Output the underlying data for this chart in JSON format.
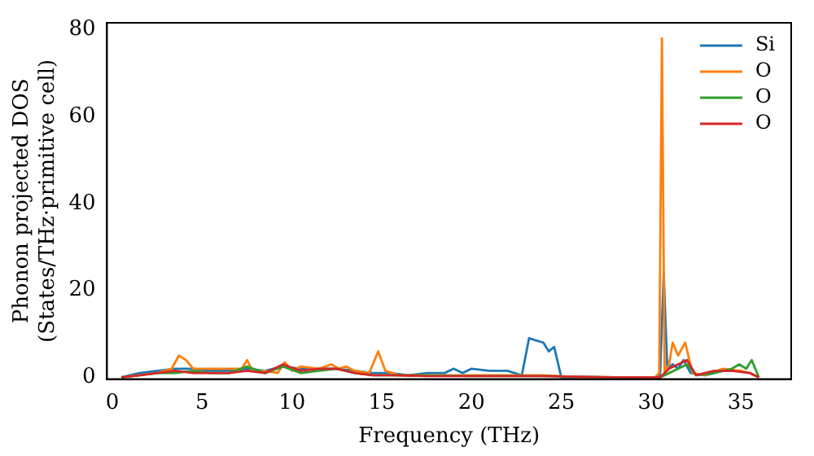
{
  "chart_data": {
    "type": "line",
    "xlabel": "Frequency (THz)",
    "ylabel": "Phonon projected DOS\n(States/THz·primitive cell)",
    "xlim": [
      -0.3,
      37.8
    ],
    "ylim": [
      -0.4,
      81.6
    ],
    "xticks": [
      0,
      5,
      10,
      15,
      20,
      25,
      30,
      35
    ],
    "yticks": [
      0,
      20,
      40,
      60,
      80
    ],
    "legend": "top right",
    "grid": false,
    "marker": "none",
    "line_style": "solid",
    "series": [
      {
        "name": "Si",
        "color": "#1f77b4",
        "x": [
          0.5,
          1.5,
          2.5,
          3.5,
          4.5,
          5.5,
          6.5,
          7.5,
          8.5,
          9.5,
          10.5,
          11.5,
          12.5,
          13.5,
          14.5,
          15.5,
          16.5,
          17.5,
          18.5,
          19,
          19.5,
          20,
          21,
          22,
          22.8,
          23.2,
          23.6,
          24,
          24.3,
          24.6,
          25,
          26,
          28,
          30.2,
          30.5,
          30.7,
          30.9,
          31.2,
          31.5,
          31.8,
          32.2,
          33,
          34,
          35
        ],
        "values": [
          0,
          1,
          1.5,
          2,
          2,
          1.5,
          1.5,
          2,
          1.5,
          2.5,
          2,
          2,
          2,
          1.5,
          1,
          1,
          0.5,
          1,
          1,
          2,
          1,
          2,
          1.5,
          1.5,
          0.5,
          9,
          8.5,
          8,
          6,
          7,
          0,
          0,
          0,
          0,
          0.5,
          24,
          2,
          3,
          2,
          4,
          1,
          0.5,
          1.5,
          1.5
        ]
      },
      {
        "name": "O",
        "color": "#ff7f0e",
        "x": [
          0.5,
          1.5,
          2.5,
          3.3,
          3.7,
          4.1,
          4.5,
          5.5,
          6.5,
          7.2,
          7.5,
          7.8,
          8.5,
          9.2,
          9.6,
          10,
          10.5,
          11.5,
          12.2,
          12.6,
          13,
          13.5,
          14.3,
          14.8,
          15.2,
          16,
          17.5,
          19,
          20.5,
          22,
          24,
          26,
          28,
          30.2,
          30.45,
          30.6,
          30.75,
          31,
          31.2,
          31.5,
          31.9,
          32.3,
          33,
          34,
          35,
          35.5,
          36
        ],
        "values": [
          0,
          0.5,
          1,
          2,
          5,
          4,
          2,
          2,
          2,
          2,
          4,
          1.5,
          1.5,
          1,
          3.5,
          1.5,
          2.5,
          2,
          3,
          2,
          2.5,
          1.5,
          1,
          6,
          1.5,
          0.5,
          0.5,
          0.5,
          0.5,
          0.5,
          0.5,
          0,
          0,
          0,
          1,
          78,
          1,
          3,
          8,
          5,
          8,
          1,
          0.5,
          2,
          1.5,
          1,
          0
        ]
      },
      {
        "name": "O",
        "color": "#2ca02c",
        "x": [
          0.5,
          1.5,
          2.5,
          3.5,
          4.5,
          5.5,
          6.5,
          7.5,
          8.5,
          9.5,
          10.5,
          11.5,
          12.5,
          13.5,
          14.5,
          15.5,
          17.5,
          20,
          24,
          28,
          30.5,
          31,
          31.5,
          32,
          32.5,
          33.5,
          34.5,
          34.9,
          35.3,
          35.6,
          36
        ],
        "values": [
          0,
          0.5,
          1,
          1,
          1.5,
          1,
          1,
          2.5,
          1,
          2.5,
          1,
          1.5,
          2,
          1,
          0.5,
          0.5,
          0.5,
          0.3,
          0.3,
          0,
          0,
          1,
          2,
          3,
          0.5,
          1,
          2,
          3,
          2,
          4,
          0
        ]
      },
      {
        "name": "O",
        "color": "#d62728",
        "x": [
          0.5,
          1.5,
          2.5,
          3.5,
          4.5,
          5.5,
          6.5,
          7.5,
          8.5,
          9.5,
          10.5,
          11.5,
          12.5,
          13.5,
          14.5,
          15.5,
          17.5,
          20,
          24,
          28,
          30.5,
          31,
          31.5,
          32,
          32.5,
          33.5,
          34.5,
          35.5,
          36
        ],
        "values": [
          0,
          0.5,
          1,
          1.5,
          1,
          1,
          1,
          1.5,
          1,
          3,
          1.5,
          2,
          2,
          1,
          0.5,
          0.5,
          0.3,
          0.3,
          0.3,
          0,
          0,
          2,
          3,
          4,
          0.5,
          1.5,
          1.5,
          1,
          0
        ]
      }
    ]
  }
}
